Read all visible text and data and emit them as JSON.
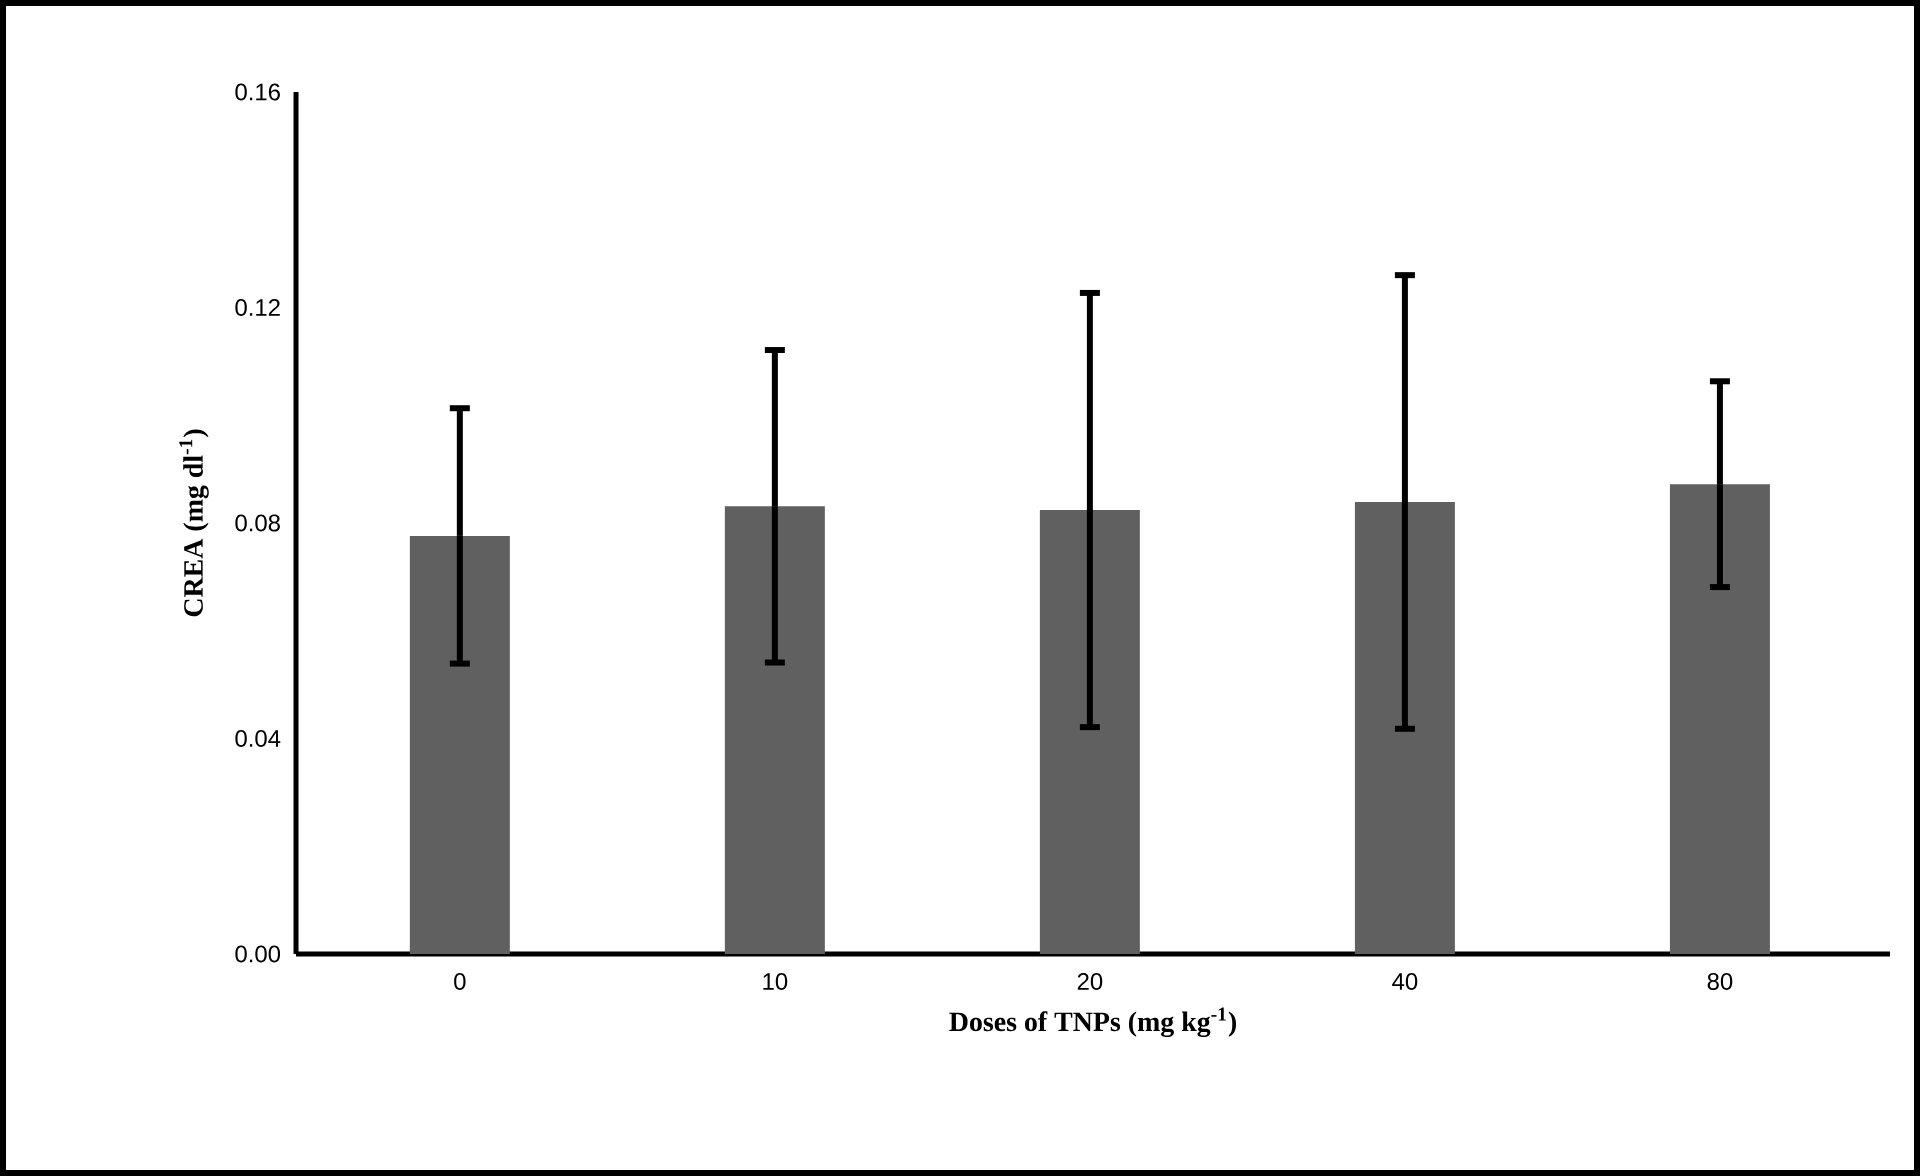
{
  "chart_data": {
    "type": "bar",
    "xlabel": "Doses  of TNPs (mg kg$^{-1}$)",
    "ylabel": "CREA (mg dl$^{-1}$)",
    "categories": [
      "0",
      "10",
      "20",
      "40",
      "80"
    ],
    "values": [
      0.0776,
      0.0831,
      0.0824,
      0.0839,
      0.0872
    ],
    "errors": [
      0.0237,
      0.029,
      0.0403,
      0.0421,
      0.0191
    ],
    "color": "#606060",
    "ylim": [
      0,
      0.16
    ],
    "yticks": [
      {
        "value": 0,
        "label": "0.00"
      },
      0.04,
      0.08,
      0.12,
      0.16
    ],
    "grid": false
  }
}
